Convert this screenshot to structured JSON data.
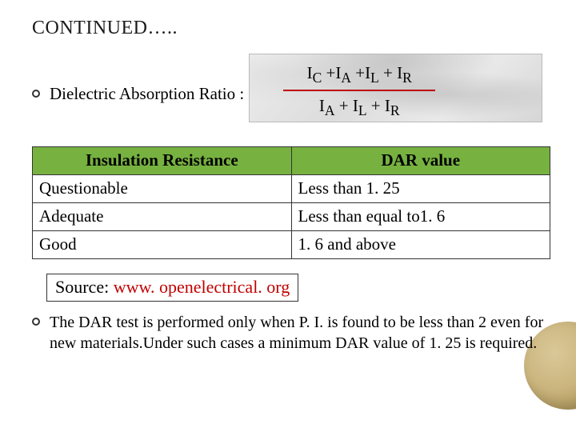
{
  "title_main": "C",
  "title_rest": "ONTINUED…..",
  "ratio_label": "Dielectric Absorption Ratio :",
  "fraction": {
    "numerator_html": "I<sub>C</sub>  +I<sub>A</sub> +I<sub>L</sub> + I<sub>R</sub>",
    "denominator_html": "I<sub>A</sub> + I<sub>L</sub>  + I<sub>R</sub>"
  },
  "table": {
    "header_bg": "#77b240",
    "row_bg": "#ffffff",
    "columns": [
      "Insulation Resistance",
      "DAR value"
    ],
    "rows": [
      [
        "Questionable",
        "Less than 1. 25"
      ],
      [
        "Adequate",
        "Less than equal to1. 6"
      ],
      [
        "Good",
        "1. 6 and above"
      ]
    ]
  },
  "source_prefix": "Source: ",
  "source_link": "www. openelectrical. org",
  "paragraph": "The DAR test is performed only when  P. I. is found to be less than 2 even for new materials.Under such cases a minimum DAR value of 1. 25 is required.",
  "colors": {
    "accent_red": "#c00000",
    "text": "#000000"
  }
}
